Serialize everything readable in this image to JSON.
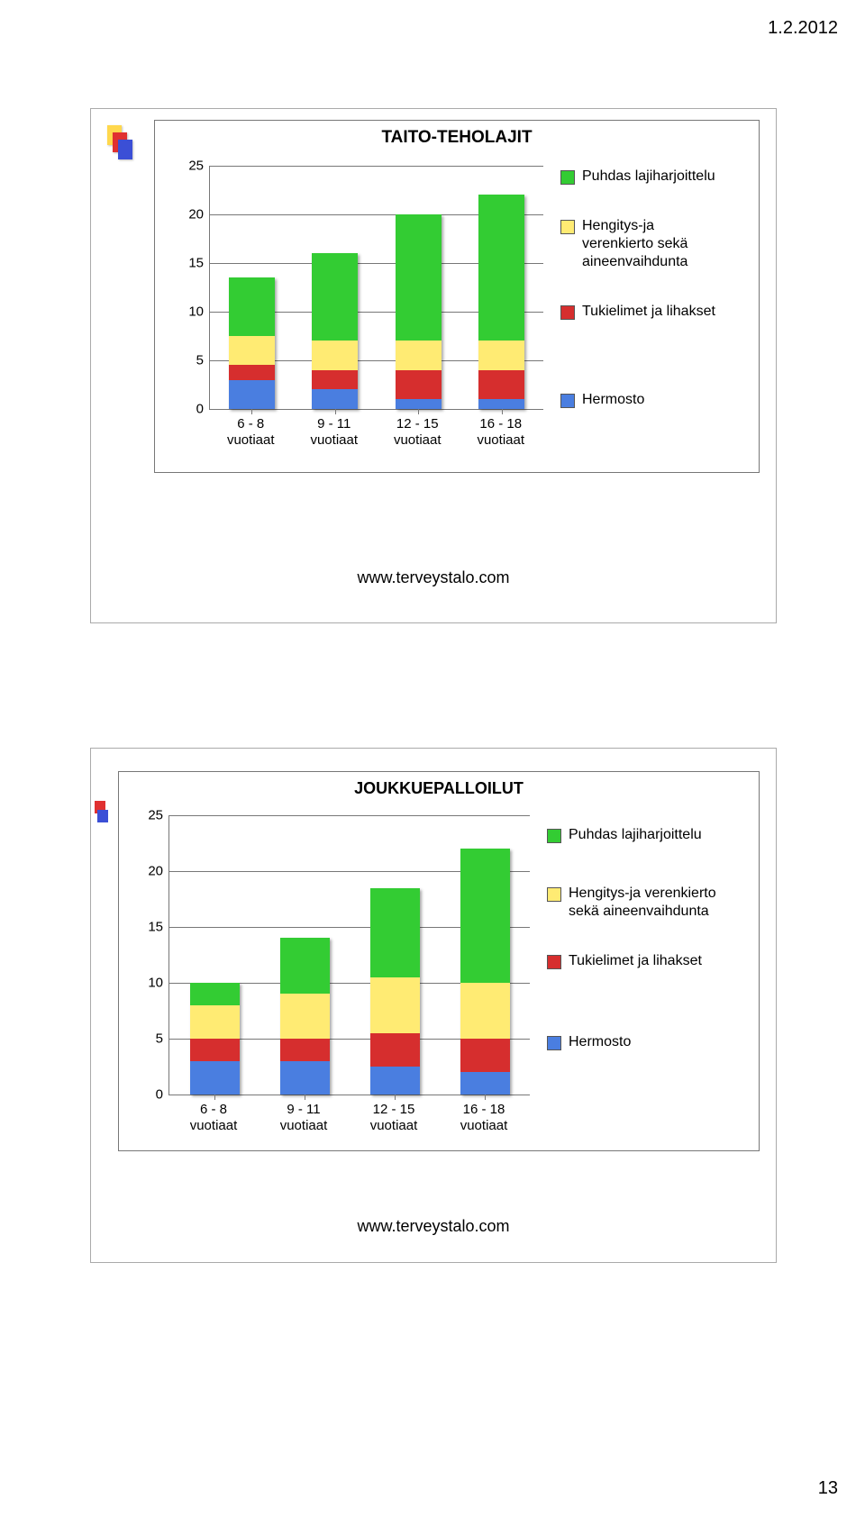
{
  "page": {
    "date": "1.2.2012",
    "number": "13"
  },
  "colors": {
    "green": "#33cc33",
    "yellow": "#ffeb73",
    "red": "#d62e2e",
    "blue": "#4a7ee0",
    "grid": "#777777",
    "text": "#000000"
  },
  "chart1": {
    "title": "TAITO-TEHOLAJIT",
    "url": "www.terveystalo.com",
    "ylim": [
      0,
      25
    ],
    "ytick_step": 5,
    "yticks": [
      "0",
      "5",
      "10",
      "15",
      "20",
      "25"
    ],
    "categories": [
      {
        "line1": "6 - 8",
        "line2": "vuotiaat"
      },
      {
        "line1": "9 - 11",
        "line2": "vuotiaat"
      },
      {
        "line1": "12 - 15",
        "line2": "vuotiaat"
      },
      {
        "line1": "16 - 18",
        "line2": "vuotiaat"
      }
    ],
    "series": [
      {
        "key": "hermosto",
        "label": "Hermosto",
        "color": "#4a7ee0"
      },
      {
        "key": "tukielimet",
        "label": "Tukielimet ja lihakset",
        "color": "#d62e2e"
      },
      {
        "key": "hengitys",
        "label": "Hengitys-ja\nverenkierto sekä\naineenvaihdunta",
        "color": "#ffeb73"
      },
      {
        "key": "puhdas",
        "label": "Puhdas lajiharjoittelu",
        "color": "#33cc33"
      }
    ],
    "stacks": [
      {
        "hermosto": 3,
        "tukielimet": 1.5,
        "hengitys": 3,
        "puhdas": 6
      },
      {
        "hermosto": 2,
        "tukielimet": 2,
        "hengitys": 3,
        "puhdas": 9
      },
      {
        "hermosto": 1,
        "tukielimet": 3,
        "hengitys": 3,
        "puhdas": 13
      },
      {
        "hermosto": 1,
        "tukielimet": 3,
        "hengitys": 3,
        "puhdas": 15
      }
    ],
    "legend_order": [
      "puhdas",
      "hengitys",
      "tukielimet",
      "hermosto"
    ]
  },
  "chart2": {
    "title": "JOUKKUEPALLOILUT",
    "url": "www.terveystalo.com",
    "ylim": [
      0,
      25
    ],
    "ytick_step": 5,
    "yticks": [
      "0",
      "5",
      "10",
      "15",
      "20",
      "25"
    ],
    "categories": [
      {
        "line1": "6 - 8",
        "line2": "vuotiaat"
      },
      {
        "line1": "9 - 11",
        "line2": "vuotiaat"
      },
      {
        "line1": "12 - 15",
        "line2": "vuotiaat"
      },
      {
        "line1": "16 - 18",
        "line2": "vuotiaat"
      }
    ],
    "series": [
      {
        "key": "hermosto",
        "label": "Hermosto",
        "color": "#4a7ee0"
      },
      {
        "key": "tukielimet",
        "label": "Tukielimet ja lihakset",
        "color": "#d62e2e"
      },
      {
        "key": "hengitys",
        "label": "Hengitys-ja verenkierto\nsekä aineenvaihdunta",
        "color": "#ffeb73"
      },
      {
        "key": "puhdas",
        "label": "Puhdas lajiharjoittelu",
        "color": "#33cc33"
      }
    ],
    "stacks": [
      {
        "hermosto": 3,
        "tukielimet": 2,
        "hengitys": 3,
        "puhdas": 2
      },
      {
        "hermosto": 3,
        "tukielimet": 2,
        "hengitys": 4,
        "puhdas": 5
      },
      {
        "hermosto": 2.5,
        "tukielimet": 3,
        "hengitys": 5,
        "puhdas": 8
      },
      {
        "hermosto": 2,
        "tukielimet": 3,
        "hengitys": 5,
        "puhdas": 12
      }
    ],
    "legend_order": [
      "puhdas",
      "hengitys",
      "tukielimet",
      "hermosto"
    ]
  }
}
